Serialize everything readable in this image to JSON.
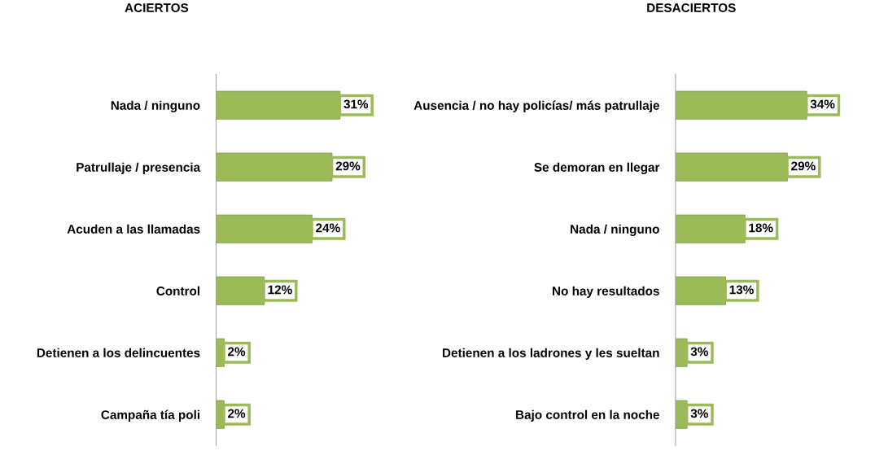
{
  "chart_data": [
    {
      "type": "bar",
      "orientation": "horizontal",
      "title": "ACIERTOS",
      "categories": [
        "Nada / ninguno",
        "Patrullaje / presencia",
        "Acuden a las llamadas",
        "Control",
        "Detienen a los delincuentes",
        "Campaña tía poli"
      ],
      "values": [
        31,
        29,
        24,
        12,
        2,
        2
      ],
      "color": "#9bbb59",
      "data_labels": true,
      "value_labels": [
        "31%",
        "29%",
        "24%",
        "12%",
        "2%",
        "2%"
      ],
      "grid": false,
      "legend": false
    },
    {
      "type": "bar",
      "orientation": "horizontal",
      "title": "DESACIERTOS",
      "categories": [
        "Ausencia / no hay policías/ más patrullaje",
        "Se demoran en llegar",
        "Nada / ninguno",
        "No hay resultados",
        "Detienen a los ladrones y les sueltan",
        "Bajo control en la noche"
      ],
      "values": [
        34,
        29,
        18,
        13,
        3,
        3
      ],
      "color": "#9bbb59",
      "data_labels": true,
      "value_labels": [
        "34%",
        "29%",
        "18%",
        "13%",
        "3%",
        "3%"
      ],
      "grid": false,
      "legend": false
    }
  ]
}
